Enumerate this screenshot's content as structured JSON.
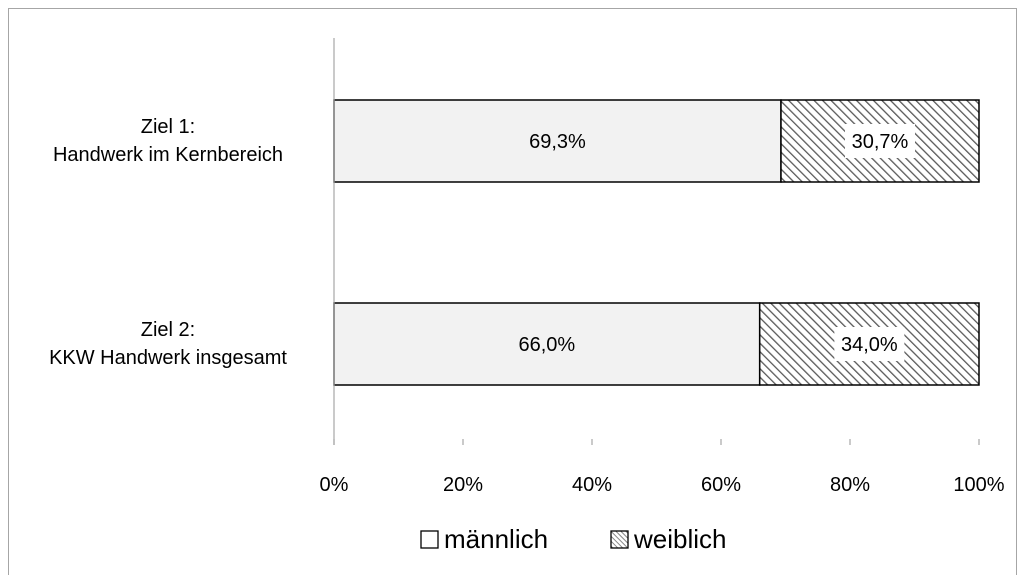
{
  "chart_data": {
    "type": "bar",
    "orientation": "horizontal",
    "stacked": true,
    "percent_stacked": true,
    "categories": [
      [
        "Ziel 1:",
        "Handwerk im Kernbereich"
      ],
      [
        "Ziel 2:",
        "KKW Handwerk insgesamt"
      ]
    ],
    "series": [
      {
        "name": "männlich",
        "values": [
          69.3,
          66.0
        ],
        "data_labels": [
          "69,3%",
          "66,0%"
        ],
        "fill": "#f2f2f2",
        "pattern": "solid"
      },
      {
        "name": "weiblich",
        "values": [
          30.7,
          34.0
        ],
        "data_labels": [
          "30,7%",
          "34,0%"
        ],
        "fill": "#595959",
        "pattern": "diagonal-hatch"
      }
    ],
    "xlim": [
      0,
      100
    ],
    "x_ticks": [
      0,
      20,
      40,
      60,
      80,
      100
    ],
    "x_tick_labels": [
      "0%",
      "20%",
      "40%",
      "60%",
      "80%",
      "100%"
    ],
    "grid": false,
    "legend_position": "bottom"
  }
}
